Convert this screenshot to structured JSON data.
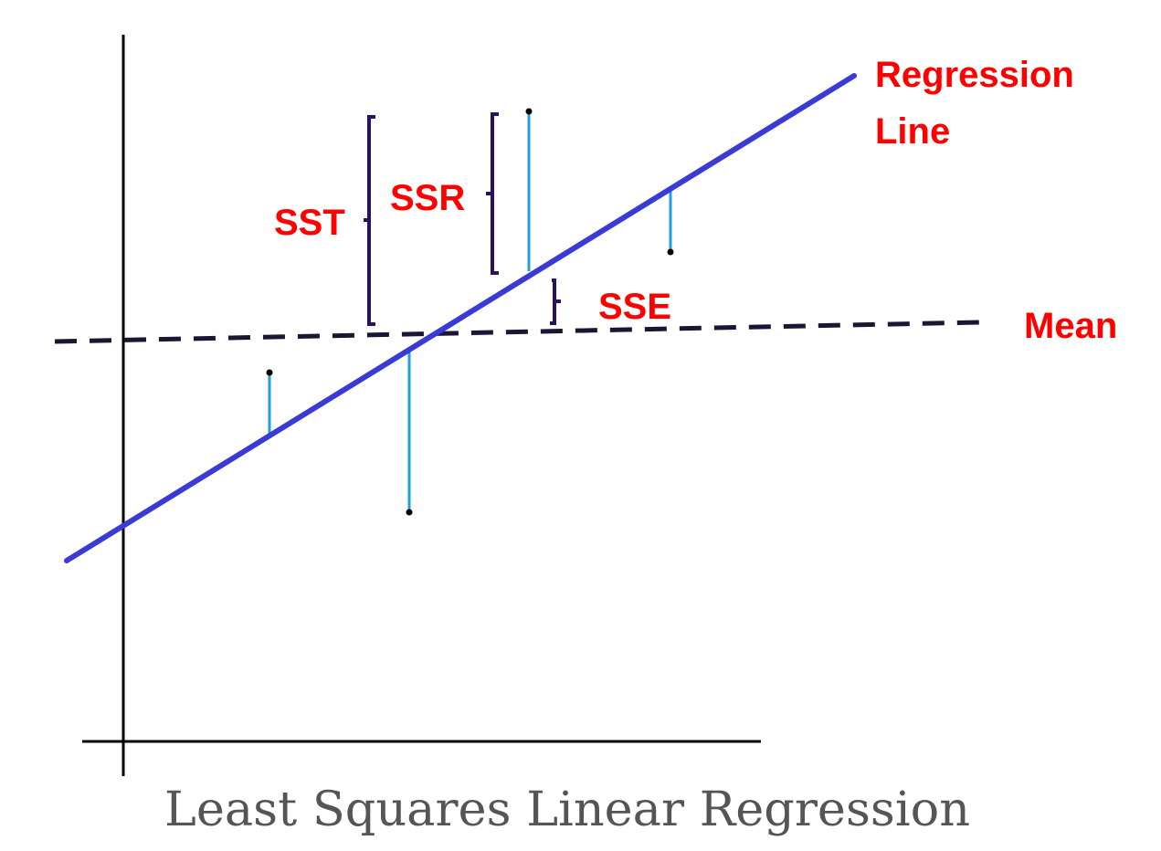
{
  "labels": {
    "regression_line_1": "Regression",
    "regression_line_2": "Line",
    "mean": "Mean",
    "sst": "SST",
    "ssr": "SSR",
    "sse": "SSE"
  },
  "caption": "Least Squares Linear Regression",
  "colors": {
    "axes": "#000000",
    "regression_line": "#3a3ad6",
    "mean_line": "#1a1633",
    "residual": "#1ea0e0",
    "brace": "#2a1260",
    "label": "#ff0000",
    "point": "#000000",
    "caption": "#555555"
  }
}
